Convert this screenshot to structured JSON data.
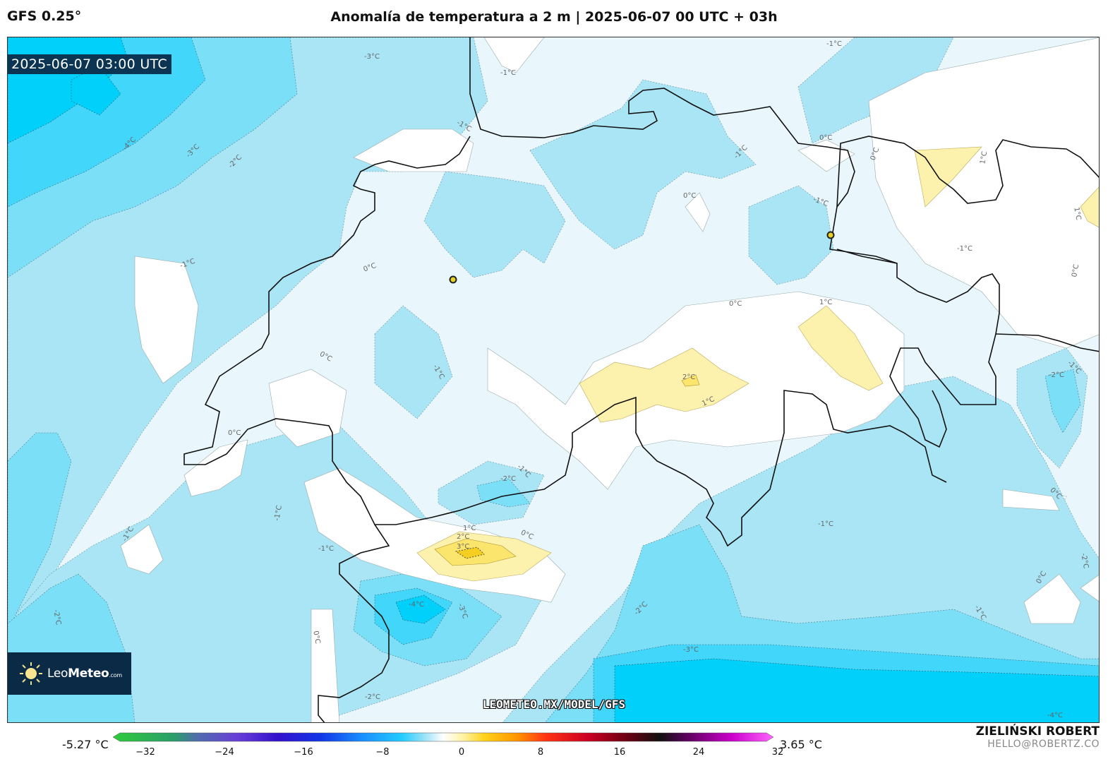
{
  "header": {
    "model": "GFS 0.25°",
    "title": "Anomalía de temperatura a 2 m | 2025-06-07 00 UTC + 03h"
  },
  "timestamp": "2025-06-07 03:00 UTC",
  "logo": {
    "name_light": "Leo",
    "name_bold": "Meteo",
    "suffix": ".com",
    "icon": "sun-icon"
  },
  "watermark": "LEOMETEO.MX/MODEL/GFS",
  "legend": {
    "min_label": "-5.27 °C",
    "max_label": "3.65 °C",
    "ticks": [
      "−32",
      "−24",
      "−16",
      "−8",
      "0",
      "8",
      "16",
      "24",
      "32"
    ],
    "range": [
      -32,
      32
    ],
    "stops": [
      {
        "v": -32,
        "c": "#2ecc3a"
      },
      {
        "v": -26,
        "c": "#2a9d6b"
      },
      {
        "v": -24,
        "c": "#4d6fa8"
      },
      {
        "v": -20,
        "c": "#6a3fd8"
      },
      {
        "v": -16,
        "c": "#3311cc"
      },
      {
        "v": -12,
        "c": "#1133e6"
      },
      {
        "v": -8,
        "c": "#1a8cff"
      },
      {
        "v": -4,
        "c": "#22ccff"
      },
      {
        "v": -2,
        "c": "#8fe0f7"
      },
      {
        "v": 0,
        "c": "#ffffff"
      },
      {
        "v": 2,
        "c": "#fff2a0"
      },
      {
        "v": 4,
        "c": "#ffd21a"
      },
      {
        "v": 7,
        "c": "#ff9900"
      },
      {
        "v": 10,
        "c": "#ff3311"
      },
      {
        "v": 14,
        "c": "#cc0022"
      },
      {
        "v": 18,
        "c": "#660011"
      },
      {
        "v": 21,
        "c": "#111111"
      },
      {
        "v": 24,
        "c": "#660066"
      },
      {
        "v": 28,
        "c": "#cc00cc"
      },
      {
        "v": 32,
        "c": "#ff66ff"
      }
    ]
  },
  "map": {
    "contour_labels": [
      "-4°C",
      "-3°C",
      "-2°C",
      "-1°C",
      "0°C",
      "1°C",
      "2°C",
      "3°C"
    ],
    "colors": {
      "minus4": "#00d0fa",
      "minus3": "#43d6fb",
      "minus2": "#7bdff7",
      "minus1": "#a9e5f4",
      "zero": "#e9f7fc",
      "plus0": "#ffffff",
      "plus1": "#fdf2ad",
      "plus2": "#fbe56c",
      "plus3": "#f4cf1f"
    }
  },
  "credit": {
    "name": "ZIELIŃSKI ROBERT",
    "email": "HELLO@ROBERTZ.CO"
  }
}
